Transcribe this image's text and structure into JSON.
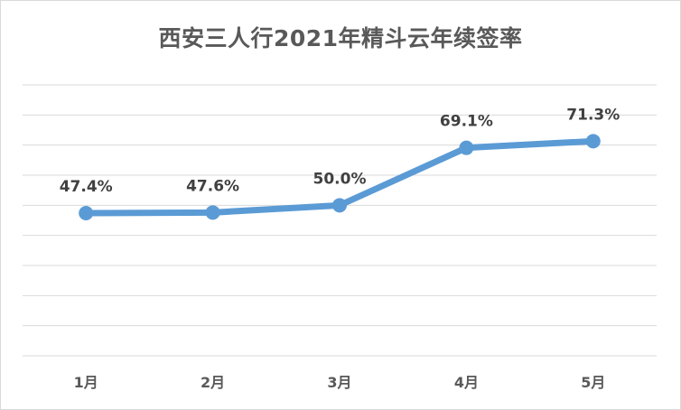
{
  "chart_data": {
    "type": "line",
    "title": "西安三人行2021年精斗云年续签率",
    "categories": [
      "1月",
      "2月",
      "3月",
      "4月",
      "5月"
    ],
    "series": [
      {
        "values": [
          47.4,
          47.6,
          50.0,
          69.1,
          71.3
        ],
        "labels": [
          "47.4%",
          "47.6%",
          "50.0%",
          "69.1%",
          "71.3%"
        ],
        "color": "#5b9bd5"
      }
    ],
    "ylim": [
      0,
      90
    ],
    "y_major_unit": 10,
    "grid": true,
    "legend": "none",
    "xlabel": "",
    "ylabel": ""
  }
}
